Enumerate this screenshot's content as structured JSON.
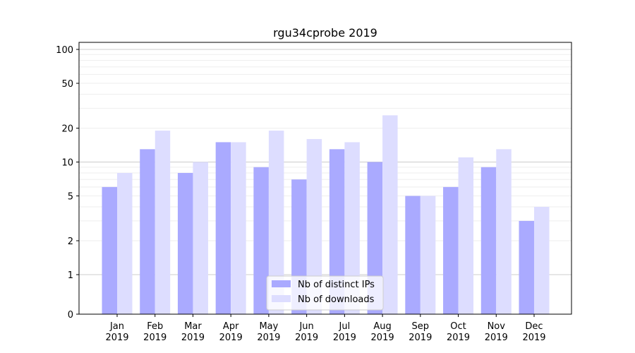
{
  "chart_data": {
    "type": "bar",
    "title": "rgu34cprobe 2019",
    "xlabel": "",
    "ylabel": "",
    "yscale": "symlog",
    "ylim": [
      0,
      120
    ],
    "yticks": [
      0,
      1,
      2,
      5,
      10,
      20,
      50,
      100
    ],
    "ytick_labels": [
      "0",
      "1",
      "2",
      "5",
      "10",
      "20",
      "50",
      "100"
    ],
    "grid": true,
    "legend_position": "bottom-center",
    "categories": [
      "Jan",
      "Feb",
      "Mar",
      "Apr",
      "May",
      "Jun",
      "Jul",
      "Aug",
      "Sep",
      "Oct",
      "Nov",
      "Dec"
    ],
    "category_sublabels": [
      "2019",
      "2019",
      "2019",
      "2019",
      "2019",
      "2019",
      "2019",
      "2019",
      "2019",
      "2019",
      "2019",
      "2019"
    ],
    "series": [
      {
        "name": "Nb of distinct IPs",
        "color": "#aaaaff",
        "values": [
          6,
          13,
          8,
          15,
          9,
          7,
          13,
          10,
          5,
          6,
          9,
          3
        ]
      },
      {
        "name": "Nb of downloads",
        "color": "#ddddff",
        "values": [
          8,
          19,
          10,
          15,
          19,
          16,
          15,
          26,
          5,
          11,
          13,
          4
        ]
      }
    ]
  }
}
